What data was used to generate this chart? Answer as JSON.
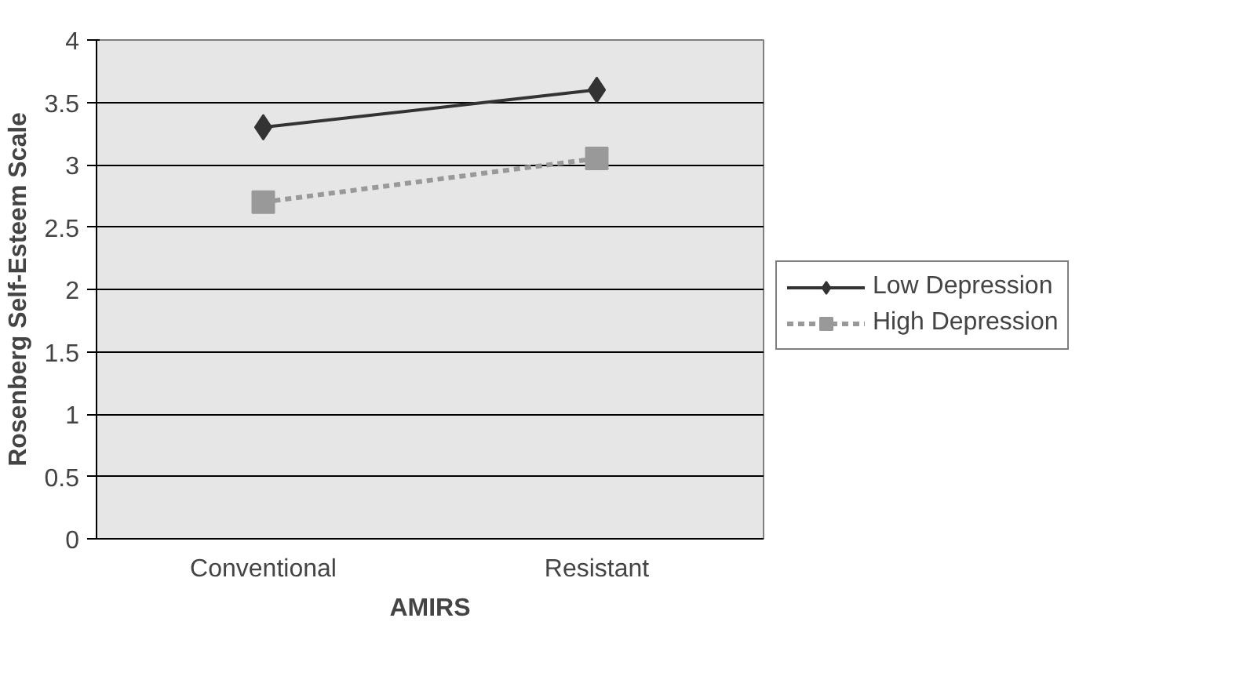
{
  "chart_data": {
    "type": "line",
    "xlabel": "AMIRS",
    "ylabel": "Rosenberg Self-Esteem Scale",
    "categories": [
      "Conventional",
      "Resistant"
    ],
    "series": [
      {
        "name": "Low Depression",
        "color": "#333333",
        "values": [
          3.3,
          3.6
        ],
        "marker": "diamond",
        "line_style": "solid"
      },
      {
        "name": "High Depression",
        "color": "#999999",
        "values": [
          2.7,
          3.05
        ],
        "marker": "square",
        "line_style": "dotted"
      }
    ],
    "ylim": [
      0,
      4
    ],
    "yticks": [
      0,
      0.5,
      1,
      1.5,
      2,
      2.5,
      3,
      3.5,
      4
    ],
    "grid": "y",
    "legend": "right"
  }
}
